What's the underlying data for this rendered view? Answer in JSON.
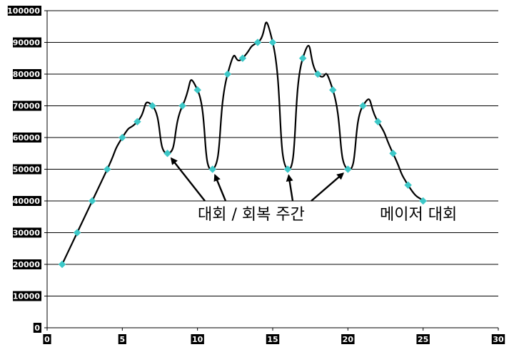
{
  "chart_data": {
    "type": "line",
    "title": "",
    "xlabel": "",
    "ylabel": "",
    "xlim": [
      0,
      30
    ],
    "ylim": [
      0,
      100000
    ],
    "x_ticks": [
      0,
      5,
      10,
      15,
      20,
      25,
      30
    ],
    "y_ticks": [
      0,
      10000,
      20000,
      30000,
      40000,
      50000,
      60000,
      70000,
      80000,
      90000,
      100000
    ],
    "x_tick_labels": [
      "0",
      "5",
      "10",
      "15",
      "20",
      "25",
      "30"
    ],
    "y_tick_labels": [
      "0",
      "10000",
      "20000",
      "30000",
      "40000",
      "50000",
      "60000",
      "70000",
      "80000",
      "90000",
      "100000"
    ],
    "grid": "horizontal",
    "smooth": true,
    "line_color": "#000000",
    "marker_color": "#3cc8c8",
    "marker": "diamond",
    "series": [
      {
        "x": [
          1,
          2,
          3,
          4,
          5,
          6,
          7,
          8,
          9,
          10,
          11,
          12,
          13,
          14,
          15,
          16,
          17,
          18,
          19,
          20,
          21,
          22,
          23,
          24,
          25
        ],
        "values": [
          20000,
          30000,
          40000,
          50000,
          60000,
          65000,
          70000,
          55000,
          70000,
          75000,
          50000,
          80000,
          85000,
          90000,
          90000,
          50000,
          85000,
          80000,
          75000,
          50000,
          70000,
          65000,
          55000,
          45000,
          40000
        ]
      }
    ],
    "annotations": [
      {
        "text": "대회 / 회복 주간",
        "arrows_to_x": [
          8,
          11,
          16,
          20
        ]
      },
      {
        "text": "메이저 대회"
      }
    ]
  }
}
